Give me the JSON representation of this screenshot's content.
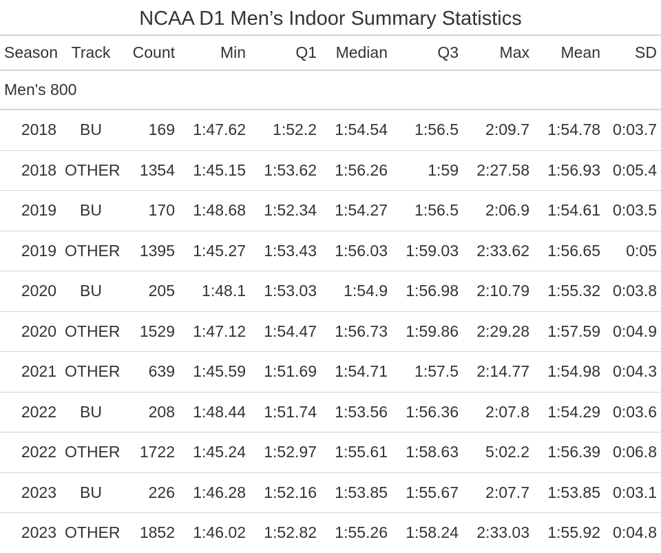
{
  "title": "NCAA D1 Men’s Indoor Summary Statistics",
  "columns": [
    "Season",
    "Track",
    "Count",
    "Min",
    "Q1",
    "Median",
    "Q3",
    "Max",
    "Mean",
    "SD"
  ],
  "group_label": "Men's 800",
  "rows": [
    [
      "2018",
      "BU",
      "169",
      "1:47.62",
      "1:52.2",
      "1:54.54",
      "1:56.5",
      "2:09.7",
      "1:54.78",
      "0:03.7"
    ],
    [
      "2018",
      "OTHER",
      "1354",
      "1:45.15",
      "1:53.62",
      "1:56.26",
      "1:59",
      "2:27.58",
      "1:56.93",
      "0:05.4"
    ],
    [
      "2019",
      "BU",
      "170",
      "1:48.68",
      "1:52.34",
      "1:54.27",
      "1:56.5",
      "2:06.9",
      "1:54.61",
      "0:03.5"
    ],
    [
      "2019",
      "OTHER",
      "1395",
      "1:45.27",
      "1:53.43",
      "1:56.03",
      "1:59.03",
      "2:33.62",
      "1:56.65",
      "0:05"
    ],
    [
      "2020",
      "BU",
      "205",
      "1:48.1",
      "1:53.03",
      "1:54.9",
      "1:56.98",
      "2:10.79",
      "1:55.32",
      "0:03.8"
    ],
    [
      "2020",
      "OTHER",
      "1529",
      "1:47.12",
      "1:54.47",
      "1:56.73",
      "1:59.86",
      "2:29.28",
      "1:57.59",
      "0:04.9"
    ],
    [
      "2021",
      "OTHER",
      "639",
      "1:45.59",
      "1:51.69",
      "1:54.71",
      "1:57.5",
      "2:14.77",
      "1:54.98",
      "0:04.3"
    ],
    [
      "2022",
      "BU",
      "208",
      "1:48.44",
      "1:51.74",
      "1:53.56",
      "1:56.36",
      "2:07.8",
      "1:54.29",
      "0:03.6"
    ],
    [
      "2022",
      "OTHER",
      "1722",
      "1:45.24",
      "1:52.97",
      "1:55.61",
      "1:58.63",
      "5:02.2",
      "1:56.39",
      "0:06.8"
    ],
    [
      "2023",
      "BU",
      "226",
      "1:46.28",
      "1:52.16",
      "1:53.85",
      "1:55.67",
      "2:07.7",
      "1:53.85",
      "0:03.1"
    ],
    [
      "2023",
      "OTHER",
      "1852",
      "1:46.02",
      "1:52.82",
      "1:55.26",
      "1:58.24",
      "2:33.03",
      "1:55.92",
      "0:04.8"
    ]
  ]
}
